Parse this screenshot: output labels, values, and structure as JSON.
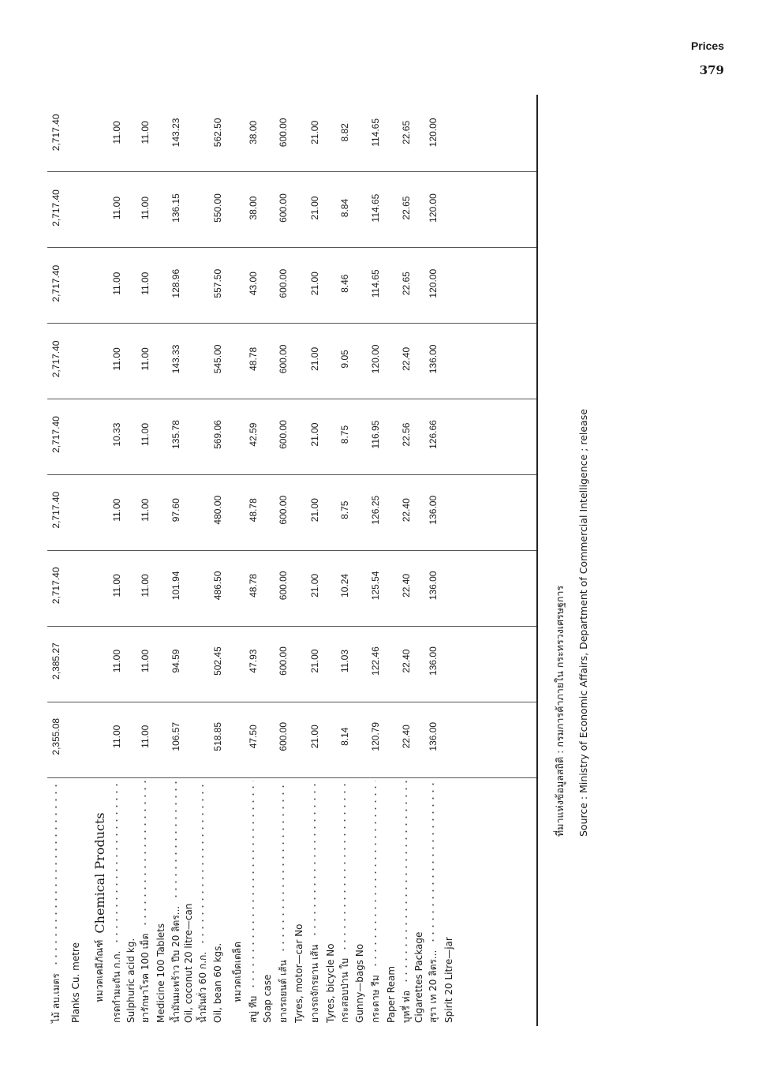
{
  "header": {
    "section": "Prices",
    "page_number": "379"
  },
  "table": {
    "rows": [
      {
        "label": "ไม้ ลบ.เมตร",
        "leader": true,
        "values": [
          "2,355.08",
          "2,385.27",
          "2,717.40",
          "2,717.40",
          "2,717.40",
          "2,717.40",
          "2,717.40",
          "2,717.40",
          "2,717.40"
        ]
      },
      {
        "label": "Planks Cu. metre"
      },
      {
        "label": "หมวดเคมีภัณฑ์",
        "label_en": "Chemical Products",
        "heading": true
      },
      {
        "label": "กรดกำมะถัน  ก.ก.",
        "leader": true,
        "values": [
          "11.00",
          "11.00",
          "11.00",
          "11.00",
          "10.33",
          "11.00",
          "11.00",
          "11.00",
          "11.00"
        ]
      },
      {
        "label": "Sulphuric acid kg."
      },
      {
        "label": "ยารักษาโรค  100 เม็ด",
        "leader": true,
        "values": [
          "11.00",
          "11.00",
          "11.00",
          "11.00",
          "11.00",
          "11.00",
          "11.00",
          "11.00",
          "11.00"
        ]
      },
      {
        "label": "Medicine 100 Tablets"
      },
      {
        "label": "น้ำมันมะพร้าว  ปีบ 20 ลิตร...",
        "leader": true,
        "values": [
          "106.57",
          "94.59",
          "101.94",
          "97.60",
          "135.78",
          "143.33",
          "128.96",
          "136.15",
          "143.23"
        ]
      },
      {
        "label": "Oil, coconut 20 litre—can"
      },
      {
        "label": "น้ำมันถั่ว   60 ก.ก.",
        "leader": true
      },
      {
        "label": "Oil, bean 60 kgs.",
        "values": [
          "518.85",
          "502.45",
          "486.50",
          "480.00",
          "569.06",
          "545.00",
          "557.50",
          "550.00",
          "562.50"
        ]
      },
      {
        "label": "หมวดเบ็ดเตล็ด",
        "heading": true
      },
      {
        "label": "สบู่  หีบ",
        "leader": true,
        "values": [
          "47.50",
          "47.93",
          "48.78",
          "48.78",
          "42.59",
          "48.78",
          "43.00",
          "38.00",
          "38.00"
        ]
      },
      {
        "label": "Soap case"
      },
      {
        "label": "ยางรถยนต์  เส้น",
        "leader": true,
        "values": [
          "600.00",
          "600.00",
          "600.00",
          "600.00",
          "600.00",
          "600.00",
          "600.00",
          "600.00",
          "600.00"
        ]
      },
      {
        "label": "Tyres, motor—car No"
      },
      {
        "label": "ยางรถจักรยาน  เส้น",
        "leader": true,
        "values": [
          "21.00",
          "21.00",
          "21.00",
          "21.00",
          "21.00",
          "21.00",
          "21.00",
          "21.00",
          "21.00"
        ]
      },
      {
        "label": "Tyres, bicycle No"
      },
      {
        "label": "กระสอบป่าน  ใบ",
        "leader": true,
        "values": [
          "8.14",
          "11.03",
          "10.24",
          "8.75",
          "8.75",
          "9.05",
          "8.46",
          "8.84",
          "8.82"
        ]
      },
      {
        "label": "Gunny—bags No"
      },
      {
        "label": "กระดาษ  รีม",
        "leader": true,
        "values": [
          "120.79",
          "122.46",
          "125.54",
          "126.25",
          "116.95",
          "120.00",
          "114.65",
          "114.65",
          "114.65"
        ]
      },
      {
        "label": "Paper Ream"
      },
      {
        "label": "บุหรี่  ห่อ",
        "leader": true,
        "values": [
          "22.40",
          "22.40",
          "22.40",
          "22.40",
          "22.56",
          "22.40",
          "22.65",
          "22.65",
          "22.65"
        ]
      },
      {
        "label": "Cigarettes Package"
      },
      {
        "label": "สุรา  เท 20 ลิตร...",
        "leader": true,
        "values": [
          "136.00",
          "136.00",
          "136.00",
          "136.00",
          "126.66",
          "136.00",
          "120.00",
          "120.00",
          "120.00"
        ]
      },
      {
        "label": "Spirit 20 Litre—jar"
      }
    ]
  },
  "source": {
    "thai": "ที่มาแห่งข้อมูลสถิติ : กรมการค้าภายใน กระทรวงเศรษฐการ",
    "english": "Source : Ministry of Economic Affairs, Department of Commercial Intelligence ; release"
  }
}
